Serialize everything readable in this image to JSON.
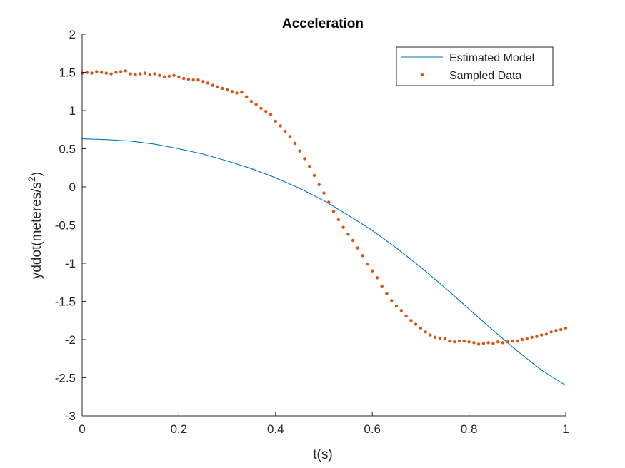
{
  "chart_data": {
    "type": "line",
    "title": "Acceleration",
    "xlabel": "t(s)",
    "ylabel_main": "yddot(meteres/s",
    "ylabel_sup": "2",
    "ylabel_close": ")",
    "xlim": [
      0,
      1
    ],
    "ylim": [
      -3,
      2
    ],
    "xticks": [
      0,
      0.2,
      0.4,
      0.6,
      0.8,
      1
    ],
    "xtick_labels": [
      "0",
      "0.2",
      "0.4",
      "0.6",
      "0.8",
      "1"
    ],
    "yticks": [
      -3,
      -2.5,
      -2,
      -1.5,
      -1,
      -0.5,
      0,
      0.5,
      1,
      1.5,
      2
    ],
    "ytick_labels": [
      "-3",
      "-2.5",
      "-2",
      "-1.5",
      "-1",
      "-0.5",
      "0",
      "0.5",
      "1",
      "1.5",
      "2"
    ],
    "grid": false,
    "legend_position": "top-right",
    "series": [
      {
        "name": "Estimated Model",
        "style": "line",
        "color": "#0072BD",
        "x": [
          0,
          0.05,
          0.1,
          0.15,
          0.2,
          0.25,
          0.3,
          0.35,
          0.4,
          0.45,
          0.5,
          0.55,
          0.6,
          0.65,
          0.7,
          0.75,
          0.8,
          0.85,
          0.9,
          0.95,
          1.0
        ],
        "y": [
          0.63,
          0.62,
          0.6,
          0.56,
          0.5,
          0.43,
          0.34,
          0.24,
          0.12,
          -0.02,
          -0.18,
          -0.37,
          -0.57,
          -0.8,
          -1.05,
          -1.32,
          -1.6,
          -1.88,
          -2.15,
          -2.4,
          -2.6
        ]
      },
      {
        "name": "Sampled Data",
        "style": "dots",
        "color": "#D95319",
        "x": [
          0,
          0.01,
          0.02,
          0.03,
          0.04,
          0.05,
          0.06,
          0.07,
          0.08,
          0.09,
          0.1,
          0.11,
          0.12,
          0.13,
          0.14,
          0.15,
          0.16,
          0.17,
          0.18,
          0.19,
          0.2,
          0.21,
          0.22,
          0.23,
          0.24,
          0.25,
          0.26,
          0.27,
          0.28,
          0.29,
          0.3,
          0.31,
          0.32,
          0.33,
          0.34,
          0.35,
          0.36,
          0.37,
          0.38,
          0.39,
          0.4,
          0.41,
          0.42,
          0.43,
          0.44,
          0.45,
          0.46,
          0.47,
          0.48,
          0.49,
          0.5,
          0.51,
          0.52,
          0.53,
          0.54,
          0.55,
          0.56,
          0.57,
          0.58,
          0.59,
          0.6,
          0.61,
          0.62,
          0.63,
          0.64,
          0.65,
          0.66,
          0.67,
          0.68,
          0.69,
          0.7,
          0.71,
          0.72,
          0.73,
          0.74,
          0.75,
          0.76,
          0.77,
          0.78,
          0.79,
          0.8,
          0.81,
          0.82,
          0.83,
          0.84,
          0.85,
          0.86,
          0.87,
          0.88,
          0.89,
          0.9,
          0.91,
          0.92,
          0.93,
          0.94,
          0.95,
          0.96,
          0.97,
          0.98,
          0.99,
          1.0
        ],
        "y": [
          1.49,
          1.5,
          1.49,
          1.51,
          1.5,
          1.49,
          1.48,
          1.5,
          1.51,
          1.52,
          1.48,
          1.47,
          1.48,
          1.49,
          1.47,
          1.48,
          1.46,
          1.44,
          1.45,
          1.46,
          1.44,
          1.42,
          1.41,
          1.4,
          1.4,
          1.38,
          1.36,
          1.33,
          1.31,
          1.29,
          1.27,
          1.25,
          1.23,
          1.24,
          1.18,
          1.12,
          1.08,
          1.03,
          0.99,
          0.95,
          0.86,
          0.8,
          0.73,
          0.66,
          0.57,
          0.47,
          0.37,
          0.27,
          0.15,
          0.03,
          -0.08,
          -0.2,
          -0.32,
          -0.43,
          -0.53,
          -0.62,
          -0.7,
          -0.8,
          -0.9,
          -1.01,
          -1.1,
          -1.19,
          -1.3,
          -1.4,
          -1.49,
          -1.56,
          -1.62,
          -1.69,
          -1.75,
          -1.8,
          -1.85,
          -1.9,
          -1.94,
          -1.97,
          -1.98,
          -1.99,
          -2.02,
          -2.03,
          -2.02,
          -2.02,
          -2.03,
          -2.04,
          -2.06,
          -2.05,
          -2.04,
          -2.05,
          -2.03,
          -2.04,
          -2.03,
          -2.02,
          -2.02,
          -2.0,
          -1.99,
          -1.97,
          -1.96,
          -1.94,
          -1.93,
          -1.9,
          -1.88,
          -1.87,
          -1.85
        ]
      }
    ]
  }
}
